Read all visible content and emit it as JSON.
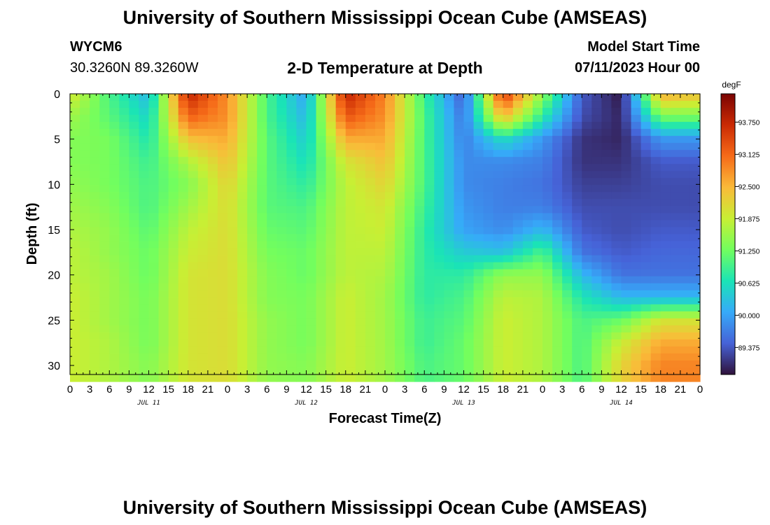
{
  "header": {
    "title": "University of Southern Mississippi Ocean Cube (AMSEAS)",
    "station_id": "WYCM6",
    "coordinates": "30.3260N  89.3260W",
    "subtitle": "2-D Temperature at Depth",
    "start_label": "Model Start Time",
    "start_value": "07/11/2023 Hour 00"
  },
  "footer": {
    "title": "University of Southern Mississippi Ocean Cube (AMSEAS)"
  },
  "chart_data": {
    "type": "heatmap",
    "title": "2-D Temperature at Depth",
    "xlabel": "Forecast Time(Z)",
    "ylabel": "Depth (ft)",
    "colorbar_unit": "degF",
    "xlim": [
      0,
      96
    ],
    "ylim": [
      31,
      0
    ],
    "x_tick_labels": [
      "0",
      "3",
      "6",
      "9",
      "12",
      "15",
      "18",
      "21",
      "0",
      "3",
      "6",
      "9",
      "12",
      "15",
      "18",
      "21",
      "0",
      "3",
      "6",
      "9",
      "12",
      "15",
      "18",
      "21",
      "0",
      "3",
      "6",
      "9",
      "12",
      "15",
      "18",
      "21",
      "0"
    ],
    "day_labels": [
      "JUL 11",
      "JUL 12",
      "JUL 13",
      "JUL 14"
    ],
    "y_ticks": [
      0,
      5,
      10,
      15,
      20,
      25,
      30
    ],
    "colorbar_ticks": [
      93.75,
      93.125,
      92.5,
      91.875,
      91.25,
      90.625,
      90.0,
      89.375
    ],
    "colorbar_tick_labels": [
      "93.750",
      "93.125",
      "92.500",
      "91.875",
      "91.250",
      "90.625",
      "90.000",
      "89.375"
    ],
    "colorbar_range": [
      88.85,
      94.3
    ],
    "colormap": [
      "#30123b",
      "#4662d7",
      "#36aaf9",
      "#1ae4b6",
      "#72fe5e",
      "#c8ef34",
      "#faba39",
      "#f66b19",
      "#ca2a04",
      "#7a0403"
    ],
    "depths_ft": [
      0,
      2.5,
      5,
      7.5,
      10,
      12.5,
      15,
      17.5,
      20,
      22.5,
      25,
      27.5,
      30
    ],
    "times_h": [
      0,
      6,
      12,
      18,
      24,
      30,
      36,
      42,
      48,
      54,
      60,
      66,
      72,
      78,
      84,
      90,
      96
    ],
    "values_degF": [
      [
        92.0,
        91.0,
        90.2,
        93.8,
        92.8,
        91.0,
        90.0,
        93.8,
        92.9,
        90.9,
        89.4,
        93.6,
        91.5,
        89.4,
        88.9,
        92.6,
        92.4
      ],
      [
        91.6,
        91.1,
        90.5,
        93.2,
        92.8,
        91.0,
        90.2,
        93.3,
        92.8,
        91.0,
        89.6,
        92.5,
        90.8,
        89.3,
        89.0,
        91.3,
        91.3
      ],
      [
        91.4,
        91.3,
        90.7,
        92.4,
        92.6,
        91.1,
        90.4,
        92.6,
        92.6,
        91.0,
        89.7,
        90.6,
        89.9,
        89.1,
        89.0,
        89.9,
        89.9
      ],
      [
        91.4,
        91.3,
        90.9,
        91.7,
        92.4,
        91.1,
        90.6,
        92.0,
        92.4,
        91.0,
        89.8,
        89.8,
        89.7,
        89.1,
        89.1,
        89.4,
        89.4
      ],
      [
        91.5,
        91.3,
        91.0,
        91.4,
        92.2,
        91.1,
        90.8,
        91.8,
        92.2,
        91.0,
        89.8,
        89.7,
        89.6,
        89.2,
        89.2,
        89.3,
        89.3
      ],
      [
        91.6,
        91.4,
        91.0,
        91.6,
        92.1,
        91.1,
        91.0,
        91.8,
        92.0,
        90.9,
        89.9,
        89.7,
        89.7,
        89.3,
        89.3,
        89.3,
        89.3
      ],
      [
        91.7,
        91.5,
        91.1,
        91.8,
        92.1,
        91.2,
        91.1,
        91.8,
        91.9,
        90.8,
        90.0,
        89.8,
        90.2,
        89.4,
        89.3,
        89.4,
        89.4
      ],
      [
        91.8,
        91.5,
        91.2,
        91.9,
        92.1,
        91.3,
        91.2,
        91.8,
        91.8,
        90.8,
        90.4,
        90.3,
        91.0,
        89.6,
        89.4,
        89.5,
        89.5
      ],
      [
        91.8,
        91.6,
        91.2,
        92.0,
        92.1,
        91.4,
        91.2,
        91.8,
        91.7,
        90.8,
        90.8,
        91.5,
        91.5,
        90.2,
        89.6,
        89.6,
        89.6
      ],
      [
        91.9,
        91.6,
        91.3,
        92.0,
        92.1,
        91.4,
        91.3,
        91.9,
        91.6,
        90.8,
        91.0,
        91.8,
        91.7,
        90.7,
        90.2,
        90.2,
        90.2
      ],
      [
        91.9,
        91.6,
        91.3,
        92.0,
        92.1,
        91.5,
        91.3,
        91.9,
        91.6,
        90.9,
        91.1,
        91.9,
        91.7,
        91.0,
        91.2,
        92.0,
        92.0
      ],
      [
        91.9,
        91.7,
        91.3,
        92.0,
        92.1,
        91.5,
        91.3,
        91.9,
        91.6,
        90.9,
        91.2,
        91.9,
        91.7,
        91.0,
        91.9,
        92.6,
        92.6
      ],
      [
        91.9,
        91.7,
        91.4,
        92.0,
        92.1,
        91.5,
        91.4,
        91.9,
        91.6,
        91.0,
        91.2,
        91.9,
        91.7,
        91.0,
        92.2,
        92.9,
        92.9
      ]
    ]
  }
}
